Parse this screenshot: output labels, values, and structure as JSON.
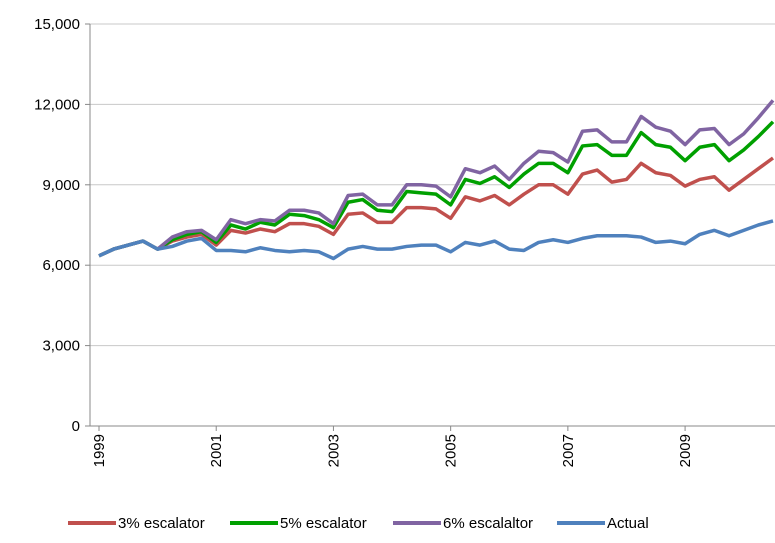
{
  "chart_data": {
    "type": "line",
    "categories": [
      "1999",
      null,
      null,
      null,
      null,
      null,
      null,
      null,
      "2001",
      null,
      null,
      null,
      null,
      null,
      null,
      null,
      "2003",
      null,
      null,
      null,
      null,
      null,
      null,
      null,
      "2005",
      null,
      null,
      null,
      null,
      null,
      null,
      null,
      "2007",
      null,
      null,
      null,
      null,
      null,
      null,
      null,
      "2009",
      null,
      null,
      null,
      null,
      null,
      null
    ],
    "series": [
      {
        "name": "3% escalator",
        "color": "#c0504d",
        "values": [
          6350,
          6600,
          6750,
          6900,
          6600,
          6900,
          7050,
          7150,
          6750,
          7300,
          7200,
          7350,
          7250,
          7550,
          7550,
          7450,
          7150,
          7900,
          7950,
          7600,
          7600,
          8150,
          8150,
          8100,
          7750,
          8550,
          8400,
          8600,
          8250,
          8650,
          9000,
          9000,
          8650,
          9400,
          9550,
          9100,
          9200,
          9800,
          9450,
          9350,
          8950,
          9200,
          9300,
          8800,
          9200,
          9600,
          10000
        ]
      },
      {
        "name": "5% escalator",
        "color": "#00a000",
        "values": [
          6350,
          6600,
          6750,
          6900,
          6600,
          6950,
          7150,
          7250,
          6850,
          7500,
          7350,
          7600,
          7500,
          7900,
          7850,
          7700,
          7400,
          8350,
          8450,
          8050,
          8000,
          8750,
          8700,
          8650,
          8250,
          9200,
          9050,
          9300,
          8900,
          9400,
          9800,
          9800,
          9450,
          10450,
          10500,
          10100,
          10100,
          10950,
          10500,
          10400,
          9900,
          10400,
          10500,
          9900,
          10300,
          10800,
          11350
        ]
      },
      {
        "name": "6% escalaltor",
        "color": "#8064a2",
        "values": [
          6350,
          6600,
          6750,
          6900,
          6600,
          7050,
          7250,
          7300,
          6950,
          7700,
          7550,
          7700,
          7650,
          8050,
          8050,
          7950,
          7550,
          8600,
          8650,
          8250,
          8250,
          9000,
          9000,
          8950,
          8550,
          9600,
          9450,
          9700,
          9200,
          9800,
          10250,
          10200,
          9850,
          11000,
          11050,
          10600,
          10600,
          11550,
          11150,
          11000,
          10500,
          11050,
          11100,
          10500,
          10900,
          11500,
          12150
        ]
      },
      {
        "name": "Actual",
        "color": "#4f81bd",
        "values": [
          6350,
          6600,
          6750,
          6900,
          6600,
          6700,
          6900,
          7000,
          6550,
          6550,
          6500,
          6650,
          6550,
          6500,
          6550,
          6500,
          6250,
          6600,
          6700,
          6600,
          6600,
          6700,
          6750,
          6750,
          6500,
          6850,
          6750,
          6900,
          6600,
          6550,
          6850,
          6950,
          6850,
          7000,
          7100,
          7100,
          7100,
          7050,
          6850,
          6900,
          6800,
          7150,
          7300,
          7100,
          7300,
          7500,
          7650
        ]
      }
    ],
    "ylim": [
      0,
      15000
    ],
    "yticks": [
      0,
      {
        "value": 3000,
        "label": "3,000"
      },
      {
        "value": 6000,
        "label": "6,000"
      },
      {
        "value": 9000,
        "label": "9,000"
      },
      {
        "value": 12000,
        "label": "12,000"
      },
      {
        "value": 15000,
        "label": "15,000"
      }
    ],
    "grid": true,
    "legend": "bottom"
  }
}
